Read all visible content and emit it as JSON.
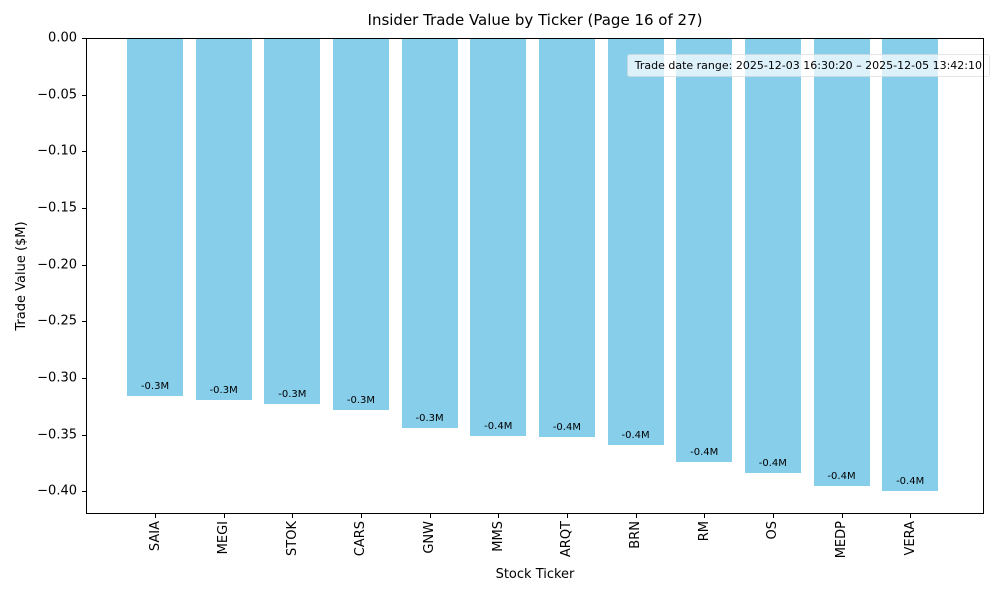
{
  "chart_data": {
    "type": "bar",
    "title": "Insider Trade Value by Ticker (Page 16 of 27)",
    "xlabel": "Stock Ticker",
    "ylabel": "Trade Value ($M)",
    "categories": [
      "SAIA",
      "MEGI",
      "STOK",
      "CARS",
      "GNW",
      "MMS",
      "ARQT",
      "BRN",
      "RM",
      "OS",
      "MEDP",
      "VERA"
    ],
    "values": [
      -0.316,
      -0.319,
      -0.323,
      -0.328,
      -0.344,
      -0.351,
      -0.352,
      -0.359,
      -0.374,
      -0.384,
      -0.395,
      -0.4
    ],
    "bar_labels": [
      "-0.3M",
      "-0.3M",
      "-0.3M",
      "-0.3M",
      "-0.3M",
      "-0.4M",
      "-0.4M",
      "-0.4M",
      "-0.4M",
      "-0.4M",
      "-0.4M",
      "-0.4M"
    ],
    "bar_color": "#87CEEB",
    "ylim": [
      -0.42,
      0
    ],
    "yticks": [
      0,
      -0.05,
      -0.1,
      -0.15,
      -0.2,
      -0.25,
      -0.3,
      -0.35,
      -0.4
    ],
    "ytick_labels": [
      "0.00",
      "−0.05",
      "−0.10",
      "−0.15",
      "−0.20",
      "−0.25",
      "−0.30",
      "−0.35",
      "−0.40"
    ],
    "grid": false,
    "legend": null,
    "annotation": "Trade date range: 2025-12-03 16:30:20 – 2025-12-05 13:42:10"
  }
}
